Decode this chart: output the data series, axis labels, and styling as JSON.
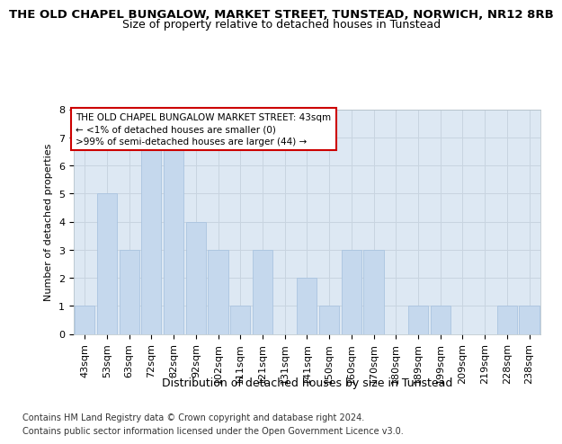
{
  "title": "THE OLD CHAPEL BUNGALOW, MARKET STREET, TUNSTEAD, NORWICH, NR12 8RB",
  "subtitle": "Size of property relative to detached houses in Tunstead",
  "xlabel": "Distribution of detached houses by size in Tunstead",
  "ylabel": "Number of detached properties",
  "categories": [
    "43sqm",
    "53sqm",
    "63sqm",
    "72sqm",
    "82sqm",
    "92sqm",
    "102sqm",
    "111sqm",
    "121sqm",
    "131sqm",
    "141sqm",
    "150sqm",
    "160sqm",
    "170sqm",
    "180sqm",
    "189sqm",
    "199sqm",
    "209sqm",
    "219sqm",
    "228sqm",
    "238sqm"
  ],
  "values": [
    1,
    5,
    3,
    7,
    7,
    4,
    3,
    1,
    3,
    0,
    2,
    1,
    3,
    3,
    0,
    1,
    1,
    0,
    0,
    1,
    1
  ],
  "bar_color": "#c5d8ed",
  "bar_edge_color": "#aac4e0",
  "annotation_box_text": "THE OLD CHAPEL BUNGALOW MARKET STREET: 43sqm\n← <1% of detached houses are smaller (0)\n>99% of semi-detached houses are larger (44) →",
  "annotation_box_color": "#ffffff",
  "annotation_box_edge_color": "#cc0000",
  "ylim": [
    0,
    8
  ],
  "yticks": [
    0,
    1,
    2,
    3,
    4,
    5,
    6,
    7,
    8
  ],
  "grid_color": "#c8d4e0",
  "background_color": "#ffffff",
  "plot_bg_color": "#dde8f3",
  "footer_line1": "Contains HM Land Registry data © Crown copyright and database right 2024.",
  "footer_line2": "Contains public sector information licensed under the Open Government Licence v3.0.",
  "title_fontsize": 9.5,
  "subtitle_fontsize": 9,
  "xlabel_fontsize": 9,
  "ylabel_fontsize": 8,
  "tick_fontsize": 8,
  "annotation_fontsize": 7.5,
  "footer_fontsize": 7
}
